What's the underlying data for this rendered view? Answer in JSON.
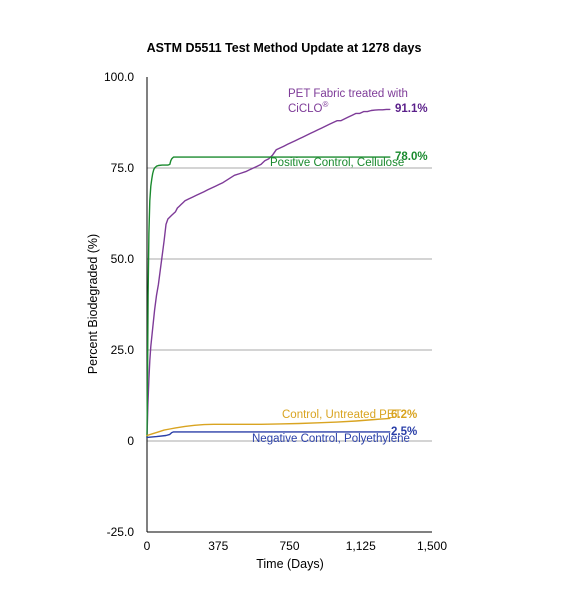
{
  "chart_data": {
    "type": "line",
    "title": "ASTM D5511 Test Method Update at 1278 days",
    "xlabel": "Time (Days)",
    "ylabel": "Percent Biodegraded (%)",
    "xlim": [
      0,
      1500
    ],
    "ylim": [
      -25,
      100
    ],
    "x_ticks": [
      0,
      375,
      750,
      1125,
      1500
    ],
    "x_tick_labels": [
      "0",
      "375",
      "750",
      "1,125",
      "1,500"
    ],
    "y_ticks": [
      -25,
      0,
      25,
      50,
      75,
      100
    ],
    "y_tick_labels": [
      "-25.0",
      "0",
      "25.0",
      "50.0",
      "75.0",
      "100.0"
    ],
    "grid": "horizontal",
    "series": [
      {
        "name": "PET Fabric treated with CiCLO®",
        "name_line1": "PET Fabric treated with",
        "name_line2": "CiCLO",
        "name_sup": "®",
        "end_label": "91.1%",
        "color": "#7e3b98",
        "x": [
          0,
          5,
          10,
          15,
          20,
          30,
          40,
          50,
          60,
          70,
          80,
          90,
          100,
          110,
          120,
          130,
          140,
          150,
          160,
          170,
          180,
          190,
          200,
          220,
          240,
          260,
          280,
          300,
          320,
          340,
          360,
          380,
          400,
          430,
          460,
          490,
          520,
          540,
          560,
          580,
          600,
          620,
          640,
          660,
          680,
          700,
          720,
          740,
          760,
          780,
          800,
          820,
          840,
          860,
          880,
          900,
          920,
          940,
          960,
          980,
          1000,
          1020,
          1040,
          1060,
          1080,
          1100,
          1120,
          1140,
          1160,
          1180,
          1200,
          1220,
          1240,
          1260,
          1278
        ],
        "y": [
          1.0,
          10.0,
          17.0,
          22.0,
          26.0,
          31.0,
          36.0,
          40.0,
          43.0,
          47.0,
          51.0,
          55.0,
          59.5,
          61.0,
          61.5,
          62.0,
          62.5,
          63.0,
          64.0,
          64.5,
          65.0,
          65.5,
          66.0,
          66.5,
          67.0,
          67.5,
          68.0,
          68.5,
          69.0,
          69.5,
          70.0,
          70.5,
          71.0,
          72.0,
          73.0,
          73.5,
          74.0,
          74.5,
          75.0,
          75.5,
          76.0,
          77.0,
          77.5,
          78.5,
          80.0,
          80.5,
          81.0,
          81.5,
          82.0,
          82.5,
          83.0,
          83.5,
          84.0,
          84.5,
          85.0,
          85.5,
          86.0,
          86.5,
          87.0,
          87.5,
          88.0,
          88.0,
          88.5,
          89.0,
          89.5,
          90.0,
          90.0,
          90.5,
          90.5,
          90.8,
          90.9,
          91.0,
          91.0,
          91.1,
          91.1
        ]
      },
      {
        "name": "Positive Control, Cellulose",
        "end_label": "78.0%",
        "color": "#1a8a2e",
        "x": [
          0,
          3,
          6,
          10,
          15,
          20,
          25,
          30,
          35,
          40,
          50,
          60,
          80,
          100,
          110,
          120,
          125,
          130,
          135,
          140,
          150,
          200,
          300,
          400,
          500,
          600,
          700,
          800,
          900,
          1000,
          1100,
          1200,
          1278
        ],
        "y": [
          1.0,
          20.0,
          40.0,
          57.0,
          66.0,
          70.0,
          72.0,
          73.5,
          74.5,
          75.0,
          75.5,
          75.7,
          75.8,
          75.8,
          75.8,
          76.0,
          77.0,
          77.5,
          77.8,
          78.0,
          78.0,
          78.0,
          78.0,
          78.0,
          78.0,
          78.0,
          78.0,
          78.0,
          78.0,
          78.0,
          78.0,
          78.0,
          78.0
        ]
      },
      {
        "name": "Control, Untreated PET",
        "end_label": "6.2%",
        "color": "#d9a421",
        "x": [
          0,
          30,
          60,
          90,
          120,
          150,
          200,
          250,
          300,
          350,
          400,
          500,
          600,
          700,
          800,
          900,
          1000,
          1100,
          1200,
          1278
        ],
        "y": [
          1.5,
          2.0,
          2.5,
          3.0,
          3.3,
          3.6,
          4.0,
          4.3,
          4.5,
          4.6,
          4.6,
          4.6,
          4.6,
          4.7,
          4.8,
          5.0,
          5.2,
          5.5,
          5.9,
          6.2
        ]
      },
      {
        "name": "Negative Control, Polyethylene",
        "end_label": "2.5%",
        "color": "#2a3fa8",
        "x": [
          0,
          50,
          100,
          120,
          130,
          140,
          200,
          400,
          600,
          800,
          1000,
          1200,
          1278
        ],
        "y": [
          1.0,
          1.2,
          1.5,
          1.8,
          2.3,
          2.5,
          2.5,
          2.5,
          2.5,
          2.5,
          2.5,
          2.5,
          2.5
        ]
      }
    ]
  }
}
